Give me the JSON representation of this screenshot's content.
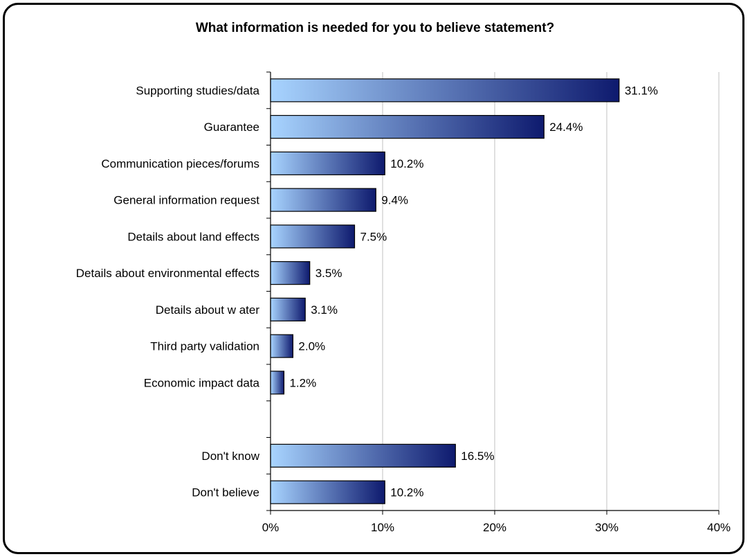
{
  "chart_data": {
    "type": "bar",
    "orientation": "horizontal",
    "title": "What information is needed for you to believe statement?",
    "categories": [
      "Supporting studies/data",
      "Guarantee",
      "Communication pieces/forums",
      "General information request",
      "Details about land effects",
      "Details about environmental effects",
      "Details about w ater",
      "Third party validation",
      "Economic impact data",
      "",
      "Don't know",
      "Don't believe"
    ],
    "values": [
      31.1,
      24.4,
      10.2,
      9.4,
      7.5,
      3.5,
      3.1,
      2.0,
      1.2,
      null,
      16.5,
      10.2
    ],
    "value_labels": [
      "31.1%",
      "24.4%",
      "10.2%",
      "9.4%",
      "7.5%",
      "3.5%",
      "3.1%",
      "2.0%",
      "1.2%",
      "",
      "16.5%",
      "10.2%"
    ],
    "xlim": [
      0,
      40
    ],
    "x_ticks": [
      0,
      10,
      20,
      30,
      40
    ],
    "x_tick_labels": [
      "0%",
      "10%",
      "20%",
      "30%",
      "40%"
    ],
    "xlabel": "",
    "ylabel": "",
    "grid": "vertical",
    "legend": "none",
    "bar_gradient": [
      "#a8d4ff",
      "#0e1a6e"
    ]
  }
}
